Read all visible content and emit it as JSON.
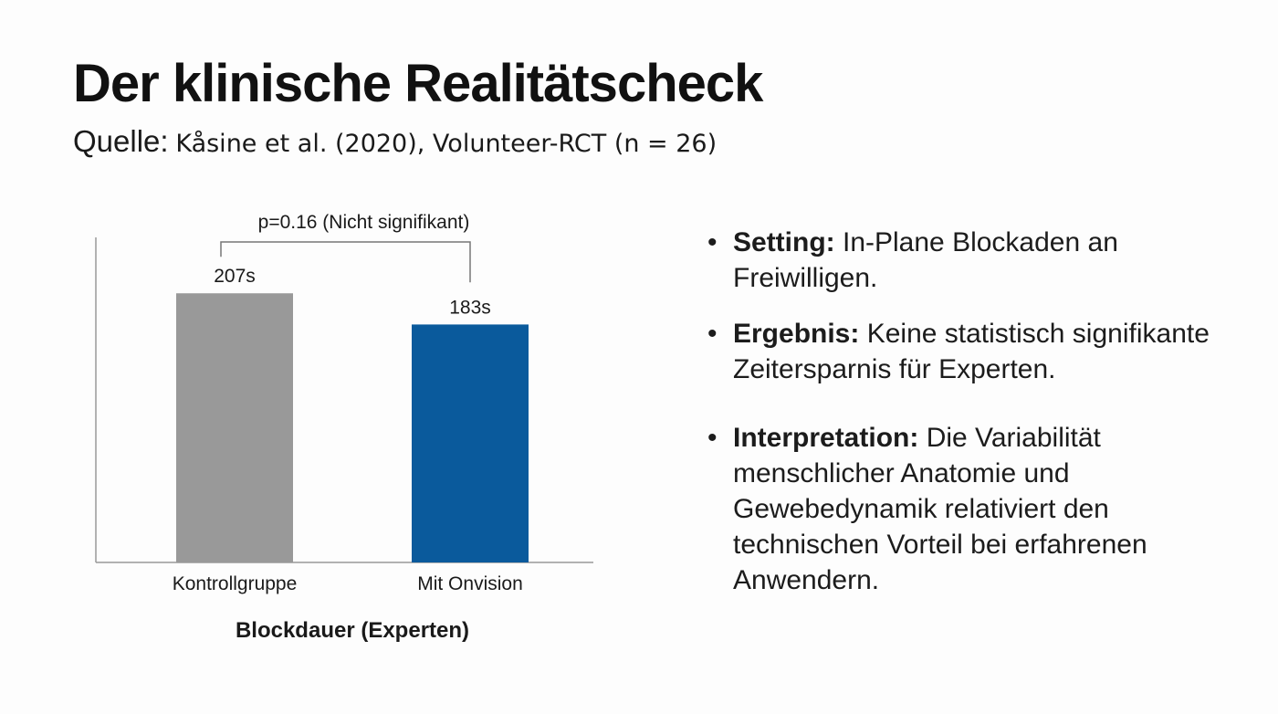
{
  "slide": {
    "title": "Der klinische Realitätscheck",
    "source_label": "Quelle:",
    "source_text": "Kåsine et al. (2020), Volunteer-RCT (n = 26)"
  },
  "chart_data": {
    "type": "bar",
    "title": "",
    "xlabel": "Blockdauer (Experten)",
    "ylabel": "",
    "categories": [
      "Kontrollgruppe",
      "Mit Onvision"
    ],
    "values": [
      207,
      183
    ],
    "value_labels": [
      "207s",
      "183s"
    ],
    "unit": "s",
    "ylim": [
      0,
      250
    ],
    "colors": [
      "#999999",
      "#0a5a9c"
    ],
    "grid": false,
    "annotation": "p=0.16 (Nicht signifikant)"
  },
  "bullets": [
    {
      "label": "Setting:",
      "text": "In-Plane Blockaden an Freiwilligen."
    },
    {
      "label": "Ergebnis:",
      "text": "Keine statistisch signifikante Zeitersparnis für Experten."
    },
    {
      "label": "Interpretation:",
      "text": "Die Variabilität menschlicher Anatomie und Gewebedynamik relativiert den technischen Vorteil bei erfahrenen Anwendern."
    }
  ]
}
